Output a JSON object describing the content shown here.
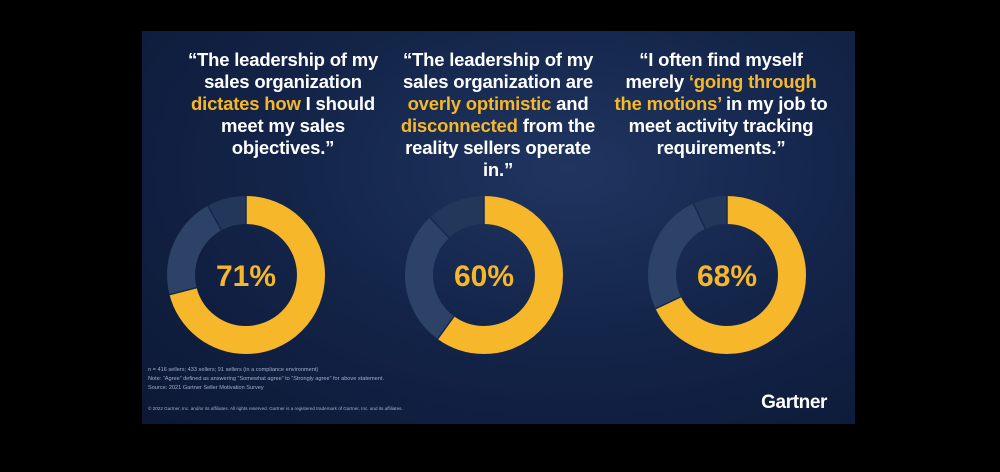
{
  "quotes": [
    {
      "parts": [
        {
          "text": "“The leadership of my sales organization ",
          "highlight": false
        },
        {
          "text": "dictates how",
          "highlight": true
        },
        {
          "text": " I should meet my sales objectives.”",
          "highlight": false
        }
      ]
    },
    {
      "parts": [
        {
          "text": "“The leadership of my sales organization are ",
          "highlight": false
        },
        {
          "text": "overly optimistic",
          "highlight": true
        },
        {
          "text": " and ",
          "highlight": false
        },
        {
          "text": "disconnected",
          "highlight": true
        },
        {
          "text": " from the reality sellers operate in.”",
          "highlight": false
        }
      ]
    },
    {
      "parts": [
        {
          "text": "“I often find myself merely ",
          "highlight": false
        },
        {
          "text": "‘going through the motions’",
          "highlight": true
        },
        {
          "text": " in my job to meet activity tracking requirements.”",
          "highlight": false
        }
      ]
    }
  ],
  "chart_data": [
    {
      "type": "pie",
      "variant": "donut",
      "value_label": "71%",
      "slices": [
        {
          "value": 71,
          "color": "#f6b72b"
        },
        {
          "value": 21,
          "color": "#2c4266"
        },
        {
          "value": 8,
          "color": "#22375a"
        }
      ]
    },
    {
      "type": "pie",
      "variant": "donut",
      "value_label": "60%",
      "slices": [
        {
          "value": 60,
          "color": "#f6b72b"
        },
        {
          "value": 28,
          "color": "#2c4266"
        },
        {
          "value": 12,
          "color": "#22375a"
        }
      ]
    },
    {
      "type": "pie",
      "variant": "donut",
      "value_label": "68%",
      "slices": [
        {
          "value": 68,
          "color": "#f6b72b"
        },
        {
          "value": 25,
          "color": "#2c4266"
        },
        {
          "value": 7,
          "color": "#22375a"
        }
      ]
    }
  ],
  "footnotes": {
    "line1": "n = 416 sellers; 433 sellers; 91 sellers (in a compliance environment)",
    "line2": "Note: “Agree” defined as answering “Somewhat agree” to “Strongly agree” for above statement.",
    "line3": "Source: 2021 Gartner Seller Motivation Survey"
  },
  "copyright": "© 2022 Gartner, Inc. and/or its affiliates. All rights reserved. Gartner is a registered trademark of Gartner, Inc. and its affiliates.",
  "logo_text": "Gartner",
  "colors": {
    "accent": "#f6b72b",
    "background": "#14254a",
    "segment_mid": "#2c4266",
    "segment_dark": "#22375a"
  }
}
